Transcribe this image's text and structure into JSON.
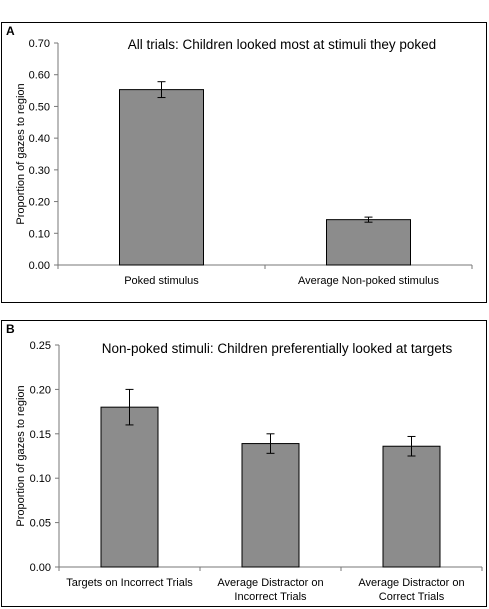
{
  "chart_data": [
    {
      "type": "bar",
      "panel_label": "A",
      "title": "All trials: Children looked most at stimuli they poked",
      "ylabel": "Proportion of gazes to region",
      "xlabel": "",
      "ylim": [
        0,
        0.7
      ],
      "yticks": [
        "0.00",
        "0.10",
        "0.20",
        "0.30",
        "0.40",
        "0.50",
        "0.60",
        "0.70"
      ],
      "categories": [
        "Poked stimulus",
        "Average Non-poked stimulus"
      ],
      "values": [
        0.553,
        0.143
      ],
      "error": [
        0.025,
        0.008
      ],
      "bar_color": "#8c8c8c",
      "grid": false
    },
    {
      "type": "bar",
      "panel_label": "B",
      "title": "Non-poked stimuli: Children preferentially looked at targets",
      "ylabel": "Proportion of gazes to region",
      "xlabel": "",
      "ylim": [
        0,
        0.25
      ],
      "yticks": [
        "0.00",
        "0.05",
        "0.10",
        "0.15",
        "0.20",
        "0.25"
      ],
      "categories": [
        [
          "Targets on Incorrect Trials"
        ],
        [
          "Average Distractor on",
          "Incorrect Trials"
        ],
        [
          "Average Distractor on",
          "Correct Trials"
        ]
      ],
      "values": [
        0.18,
        0.139,
        0.136
      ],
      "error": [
        0.02,
        0.011,
        0.011
      ],
      "bar_color": "#8c8c8c",
      "grid": false
    }
  ]
}
